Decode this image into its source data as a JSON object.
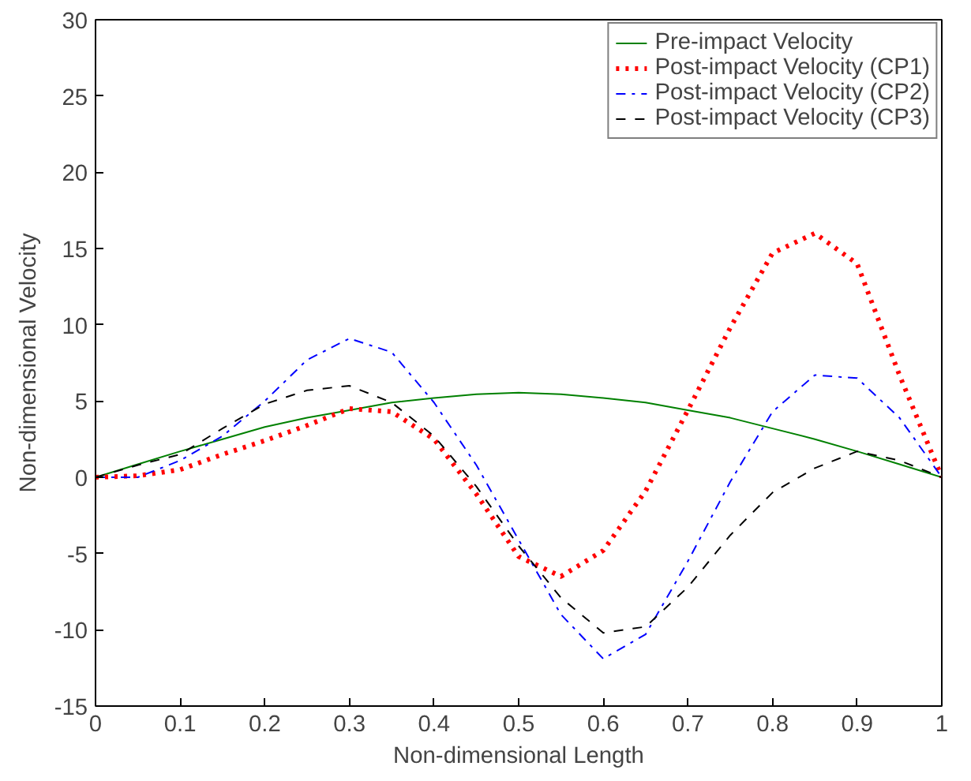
{
  "chart_data": {
    "type": "line",
    "xlabel": "Non-dimensional Length",
    "ylabel": "Non-dimensional Velocity",
    "x": [
      0,
      0.05,
      0.1,
      0.15,
      0.2,
      0.25,
      0.3,
      0.35,
      0.4,
      0.45,
      0.5,
      0.55,
      0.6,
      0.65,
      0.7,
      0.75,
      0.8,
      0.85,
      0.9,
      0.95,
      1
    ],
    "series": [
      {
        "name": "Pre-impact Velocity",
        "color": "#008000",
        "line_style": "solid",
        "values": [
          0,
          0.85,
          1.7,
          2.5,
          3.3,
          3.9,
          4.4,
          4.9,
          5.2,
          5.45,
          5.55,
          5.45,
          5.2,
          4.9,
          4.4,
          3.9,
          3.2,
          2.5,
          1.7,
          0.85,
          0
        ]
      },
      {
        "name": "Post-impact Velocity (CP1)",
        "color": "#ff0000",
        "line_style": "dotted",
        "values": [
          0,
          0.1,
          0.5,
          1.5,
          2.4,
          3.4,
          4.5,
          4.3,
          2.5,
          -1.1,
          -5.2,
          -6.5,
          -4.8,
          -0.9,
          4.4,
          9.8,
          14.7,
          16.0,
          14,
          6.7,
          0
        ]
      },
      {
        "name": "Post-impact Velocity (CP2)",
        "color": "#0000ff",
        "line_style": "dashdot",
        "values": [
          0,
          0,
          1.1,
          2.7,
          5,
          7.7,
          9.1,
          8.2,
          4.9,
          0.8,
          -4.1,
          -9,
          -11.9,
          -10.3,
          -5.5,
          -0.3,
          4.3,
          6.7,
          6.5,
          3.9,
          0
        ]
      },
      {
        "name": "Post-impact Velocity (CP3)",
        "color": "#000000",
        "line_style": "dashed",
        "values": [
          0,
          0.8,
          1.5,
          3.2,
          4.8,
          5.7,
          6.0,
          4.9,
          2.7,
          -0.6,
          -4.5,
          -7.9,
          -10.2,
          -9.8,
          -7.2,
          -3.8,
          -1,
          0.6,
          1.7,
          1.1,
          0
        ]
      }
    ],
    "xlim": [
      0,
      1
    ],
    "ylim": [
      -15,
      30
    ],
    "xticks": [
      0,
      0.1,
      0.2,
      0.3,
      0.4,
      0.5,
      0.6,
      0.7,
      0.8,
      0.9,
      1
    ],
    "yticks": [
      -15,
      -10,
      -5,
      0,
      5,
      10,
      15,
      20,
      25,
      30
    ],
    "grid": false,
    "legend": "top right"
  }
}
